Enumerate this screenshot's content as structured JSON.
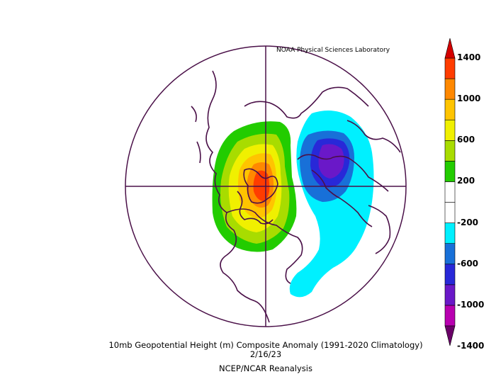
{
  "credit": "NOAA Physical Sciences Laboratory",
  "title": "10mb Geopotential Height (m) Composite Anomaly (1991-2020 Climatology)",
  "date": "2/16/23",
  "source": "NCEP/NCAR Reanalysis",
  "colorbar": {
    "labels": [
      "1400",
      "1000",
      "600",
      "200",
      "-200",
      "-600",
      "-1000",
      "-1400"
    ],
    "colors": [
      "#6a0068",
      "#b800b0",
      "#6a18c8",
      "#2828d8",
      "#1870d8",
      "#00f0ff",
      "#ffffff",
      "#ffffff",
      "#22cc00",
      "#a8dc00",
      "#f0f000",
      "#ffc400",
      "#ff8800",
      "#ff3c00",
      "#d40000"
    ]
  }
}
